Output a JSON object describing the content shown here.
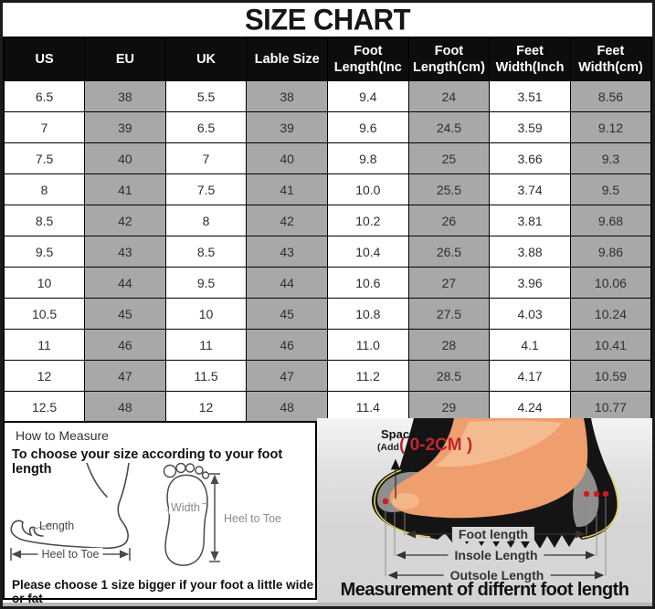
{
  "chart_data": {
    "type": "table",
    "title": "SIZE CHART",
    "columns": [
      "US",
      "EU",
      "UK",
      "Lable Size",
      "Foot Length(Inc",
      "Foot Length(cm)",
      "Feet Width(Inch",
      "Feet Width(cm)"
    ],
    "rows": [
      [
        "6.5",
        "38",
        "5.5",
        "38",
        "9.4",
        "24",
        "3.51",
        "8.56"
      ],
      [
        "7",
        "39",
        "6.5",
        "39",
        "9.6",
        "24.5",
        "3.59",
        "9.12"
      ],
      [
        "7.5",
        "40",
        "7",
        "40",
        "9.8",
        "25",
        "3.66",
        "9.3"
      ],
      [
        "8",
        "41",
        "7.5",
        "41",
        "10.0",
        "25.5",
        "3.74",
        "9.5"
      ],
      [
        "8.5",
        "42",
        "8",
        "42",
        "10.2",
        "26",
        "3.81",
        "9.68"
      ],
      [
        "9.5",
        "43",
        "8.5",
        "43",
        "10.4",
        "26.5",
        "3.88",
        "9.86"
      ],
      [
        "10",
        "44",
        "9.5",
        "44",
        "10.6",
        "27",
        "3.96",
        "10.06"
      ],
      [
        "10.5",
        "45",
        "10",
        "45",
        "10.8",
        "27.5",
        "4.03",
        "10.24"
      ],
      [
        "11",
        "46",
        "11",
        "46",
        "11.0",
        "28",
        "4.1",
        "10.41"
      ],
      [
        "12",
        "47",
        "11.5",
        "47",
        "11.2",
        "28.5",
        "4.17",
        "10.59"
      ],
      [
        "12.5",
        "48",
        "12",
        "48",
        "11.4",
        "29",
        "4.24",
        "10.77"
      ]
    ]
  },
  "measure_guide": {
    "heading": "How to Measure",
    "subheading": "To choose your size according to your foot length",
    "length_label": "Length",
    "side_heel_to_toe_label": "Heel to Toe",
    "width_label": "Width",
    "print_heel_to_toe_label": "Heel to Toe",
    "note": "Please choose 1 size bigger if your foot a little wide or fat"
  },
  "foot_diagram": {
    "space_label": "Space",
    "add_label": "(Add",
    "space_value": "( 0-2CM )",
    "foot_length_label": "Foot length",
    "insole_length_label": "Insole Length",
    "outsole_length_label": "Outsole Length",
    "caption": "Measurement of differnt foot length"
  },
  "colors": {
    "table_gray": "#a8a8a8",
    "header_bg": "#0d0d0d",
    "panel_gray": "#d6d6d6",
    "accent_red": "#c1272d",
    "foot_color": "#ef9e6d",
    "sole_outline_yellow": "#e6d24b"
  }
}
